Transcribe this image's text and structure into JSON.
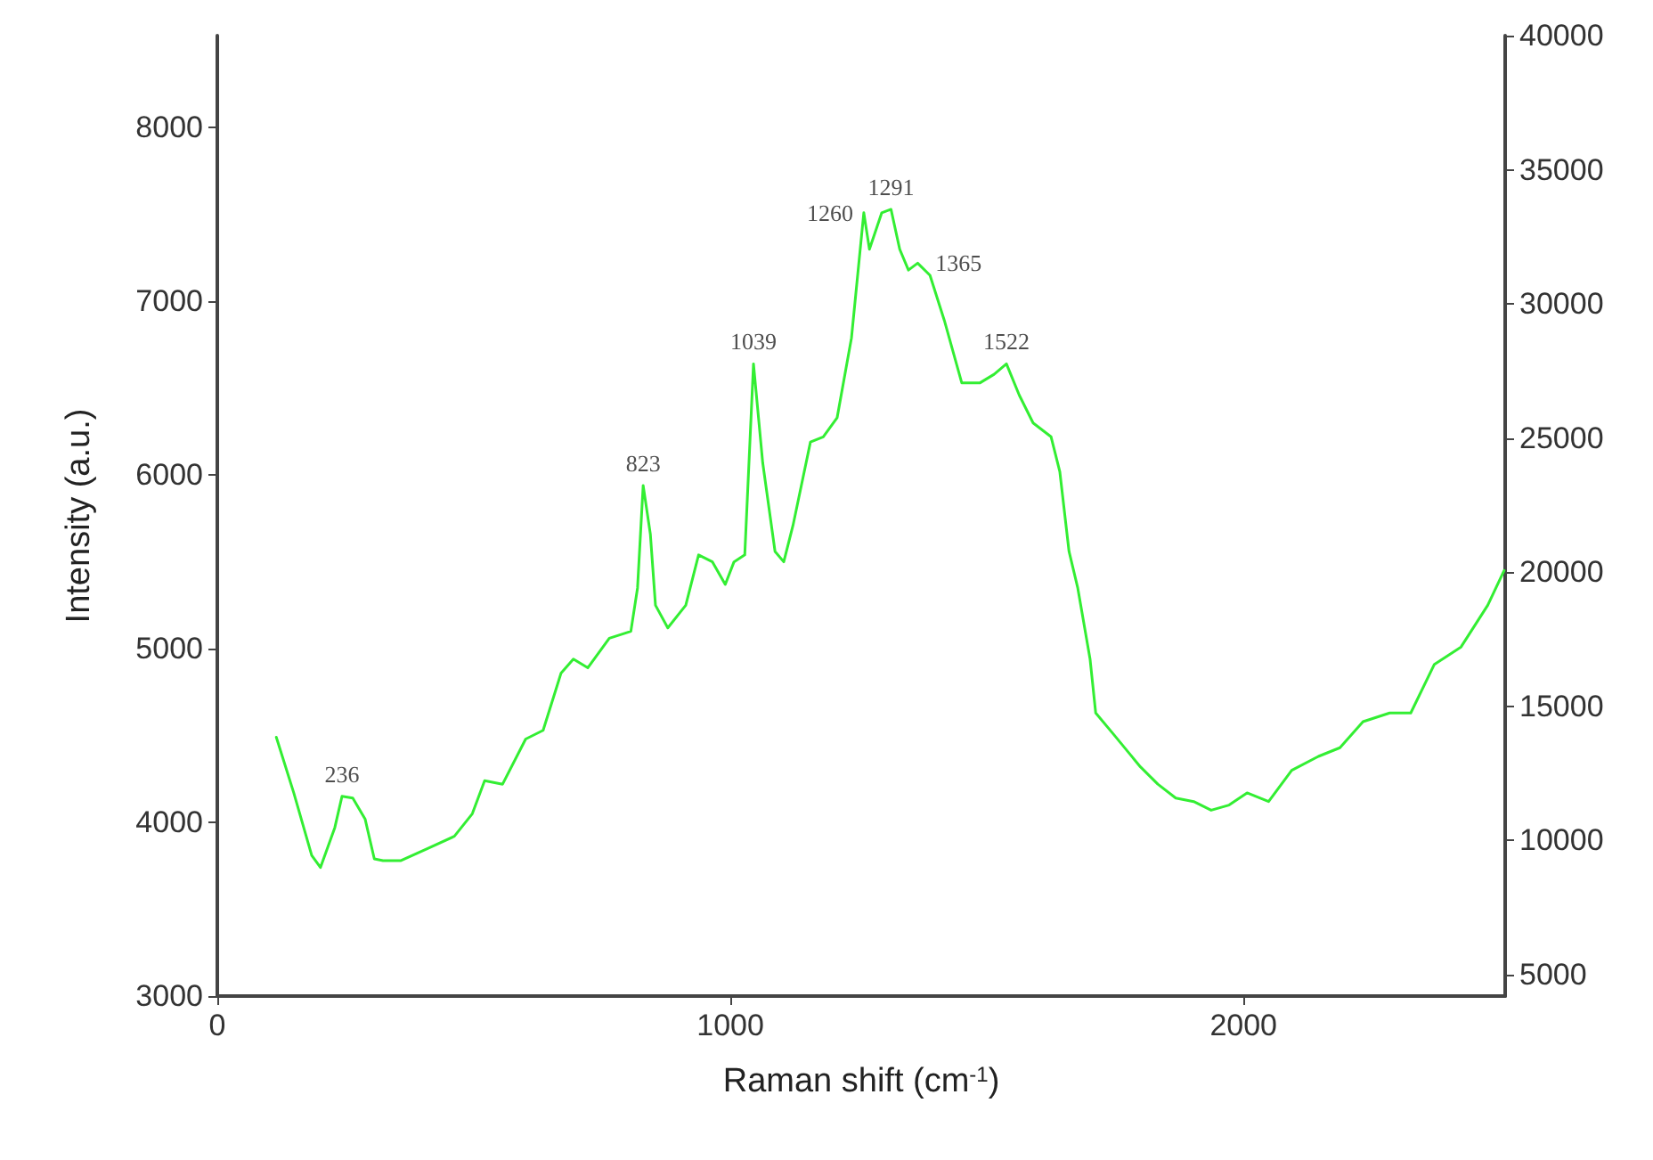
{
  "chart_data": {
    "type": "line",
    "xlabel": "Raman shift (cm$^{-1}$)",
    "ylabel": "Intensity (a.u.)",
    "xlim": [
      0,
      2510
    ],
    "xticks": [
      0,
      1000,
      2000
    ],
    "ylim": [
      3000,
      8530
    ],
    "yticks": [
      3000,
      4000,
      5000,
      6000,
      7000,
      8000
    ],
    "y2lim": [
      4200,
      40000
    ],
    "y2ticks": [
      5000,
      10000,
      15000,
      20000,
      25000,
      30000,
      35000,
      40000
    ],
    "grid": false,
    "marker": "none",
    "line_style": "solid",
    "series": [
      {
        "color": "#33ee33",
        "x": [
          115,
          149,
          184,
          201,
          229,
          243,
          264,
          288,
          306,
          323,
          358,
          410,
          462,
          497,
          521,
          556,
          601,
          635,
          670,
          694,
          722,
          764,
          806,
          819,
          830,
          844,
          854,
          878,
          913,
          938,
          965,
          990,
          1007,
          1028,
          1045,
          1063,
          1087,
          1104,
          1122,
          1156,
          1181,
          1208,
          1236,
          1260,
          1271,
          1295,
          1313,
          1330,
          1347,
          1365,
          1389,
          1417,
          1451,
          1486,
          1514,
          1538,
          1563,
          1590,
          1625,
          1642,
          1660,
          1677,
          1701,
          1712,
          1746,
          1799,
          1833,
          1868,
          1903,
          1937,
          1972,
          2007,
          2049,
          2094,
          2146,
          2188,
          2233,
          2285,
          2326,
          2372,
          2424,
          2476,
          2508
        ],
        "values": [
          4490,
          4170,
          3810,
          3740,
          3970,
          4150,
          4140,
          4020,
          3790,
          3780,
          3780,
          3850,
          3920,
          4050,
          4240,
          4220,
          4480,
          4530,
          4860,
          4940,
          4890,
          5060,
          5100,
          5350,
          5940,
          5660,
          5250,
          5120,
          5250,
          5540,
          5500,
          5370,
          5500,
          5540,
          6640,
          6070,
          5560,
          5500,
          5710,
          6190,
          6220,
          6330,
          6790,
          7510,
          7300,
          7510,
          7530,
          7300,
          7180,
          7220,
          7150,
          6890,
          6530,
          6530,
          6580,
          6640,
          6460,
          6300,
          6220,
          6020,
          5560,
          5350,
          4940,
          4630,
          4510,
          4320,
          4220,
          4140,
          4120,
          4070,
          4100,
          4170,
          4120,
          4300,
          4380,
          4430,
          4580,
          4630,
          4630,
          4910,
          5010,
          5250,
          5450
        ]
      }
    ],
    "annotations": [
      {
        "text": "236",
        "x": 243,
        "y": 4150
      },
      {
        "text": "823",
        "x": 830,
        "y": 5940
      },
      {
        "text": "1039",
        "x": 1045,
        "y": 6640
      },
      {
        "text": "1260",
        "x": 1260,
        "y": 7510
      },
      {
        "text": "1291",
        "x": 1313,
        "y": 7530
      },
      {
        "text": "1365",
        "x": 1365,
        "y": 7220
      },
      {
        "text": "1522",
        "x": 1538,
        "y": 6640
      }
    ]
  }
}
